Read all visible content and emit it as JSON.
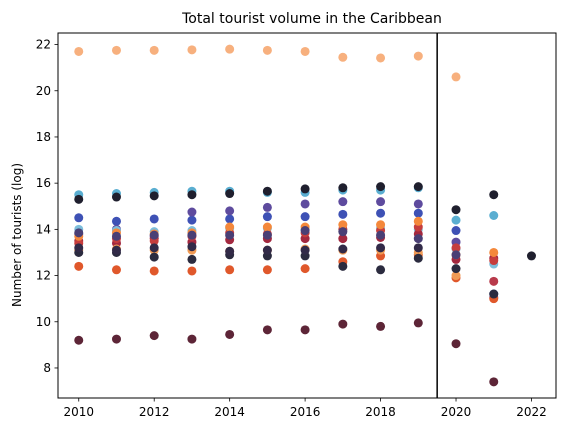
{
  "chart_data": {
    "type": "scatter",
    "title": "Total tourist volume in the Caribbean",
    "xlabel": "",
    "ylabel": "Number of tourists (log)",
    "xlim": [
      2009.45,
      2022.65
    ],
    "ylim": [
      6.7,
      22.5
    ],
    "xticks": [
      2010,
      2012,
      2014,
      2016,
      2018,
      2020,
      2022
    ],
    "yticks": [
      8,
      10,
      12,
      14,
      16,
      18,
      20,
      22
    ],
    "grid": false,
    "legend": "none",
    "vline": {
      "x": 2019.5,
      "color": "#000000"
    },
    "series": [
      {
        "color": "#f7b07e",
        "x": [
          2010,
          2011,
          2012,
          2013,
          2014,
          2015,
          2016,
          2017,
          2018,
          2019,
          2020
        ],
        "y": [
          21.7,
          21.75,
          21.75,
          21.77,
          21.8,
          21.75,
          21.7,
          21.45,
          21.42,
          21.5,
          20.6
        ]
      },
      {
        "color": "#5aaed1",
        "x": [
          2010,
          2011,
          2012,
          2013,
          2014,
          2015,
          2016,
          2017,
          2018,
          2019,
          2020,
          2021
        ],
        "y": [
          15.5,
          15.55,
          15.6,
          15.65,
          15.65,
          15.6,
          15.6,
          15.7,
          15.7,
          15.8,
          14.4,
          14.6
        ]
      },
      {
        "color": "#1f1f2e",
        "x": [
          2010,
          2011,
          2012,
          2013,
          2014,
          2015,
          2016,
          2017,
          2018,
          2019,
          2020,
          2021,
          2022
        ],
        "y": [
          15.3,
          15.4,
          15.45,
          15.5,
          15.55,
          15.65,
          15.75,
          15.8,
          15.85,
          15.85,
          14.85,
          15.5,
          12.85
        ]
      },
      {
        "color": "#3e51b5",
        "x": [
          2010,
          2011,
          2012,
          2013,
          2014,
          2015,
          2016,
          2017,
          2018,
          2019,
          2020,
          2021
        ],
        "y": [
          14.5,
          14.35,
          14.45,
          14.4,
          14.45,
          14.55,
          14.55,
          14.65,
          14.7,
          14.7,
          13.95,
          11.2
        ]
      },
      {
        "color": "#5e4b9e",
        "x": [
          2010,
          2011,
          2012,
          2013,
          2014,
          2015,
          2016,
          2017,
          2018,
          2019,
          2020,
          2021
        ],
        "y": [
          13.8,
          14.0,
          13.7,
          14.75,
          14.8,
          14.95,
          15.1,
          15.2,
          15.2,
          15.1,
          13.45,
          11.05
        ]
      },
      {
        "color": "#7dbedb",
        "x": [
          2010,
          2011,
          2012,
          2013,
          2014,
          2015,
          2016,
          2017,
          2018,
          2019,
          2020,
          2021
        ],
        "y": [
          14.0,
          13.95,
          13.9,
          13.95,
          14.05,
          14.05,
          14.0,
          14.0,
          14.05,
          14.0,
          13.15,
          12.5
        ]
      },
      {
        "color": "#a3283f",
        "x": [
          2010,
          2011,
          2012,
          2013,
          2014,
          2015,
          2016,
          2017,
          2018,
          2019,
          2020,
          2021
        ],
        "y": [
          13.5,
          13.4,
          13.6,
          13.45,
          13.55,
          13.6,
          13.6,
          13.6,
          13.65,
          13.8,
          12.7,
          12.75
        ]
      },
      {
        "color": "#c63d3d",
        "x": [
          2010,
          2011,
          2012,
          2013,
          2014,
          2015,
          2016,
          2017,
          2018,
          2019,
          2020,
          2021
        ],
        "y": [
          13.4,
          13.6,
          13.5,
          13.7,
          13.85,
          13.8,
          13.85,
          14.0,
          13.95,
          14.1,
          13.2,
          12.65
        ]
      },
      {
        "color": "#e0582b",
        "x": [
          2010,
          2011,
          2012,
          2013,
          2014,
          2015,
          2016,
          2017,
          2018,
          2019,
          2020,
          2021
        ],
        "y": [
          12.4,
          12.25,
          12.2,
          12.2,
          12.25,
          12.25,
          12.3,
          12.6,
          12.85,
          12.9,
          11.9,
          11.0
        ]
      },
      {
        "color": "#f4883b",
        "x": [
          2010,
          2011,
          2012,
          2013,
          2014,
          2015,
          2016,
          2017,
          2018,
          2019,
          2020,
          2021
        ],
        "y": [
          13.7,
          13.85,
          13.8,
          13.85,
          14.1,
          14.1,
          14.1,
          14.2,
          14.2,
          14.35,
          12.9,
          13.0
        ]
      },
      {
        "color": "#f09a54",
        "x": [
          2010,
          2011,
          2012,
          2013,
          2014,
          2015,
          2016,
          2017,
          2018,
          2019,
          2020
        ],
        "y": [
          13.1,
          13.15,
          13.1,
          13.1,
          13.05,
          13.1,
          13.15,
          13.1,
          13.1,
          13.0,
          12.0
        ]
      },
      {
        "color": "#2b2b3f",
        "x": [
          2010,
          2011,
          2012,
          2013,
          2014,
          2015,
          2016,
          2017,
          2018,
          2019,
          2020,
          2021
        ],
        "y": [
          13.0,
          13.0,
          12.8,
          12.7,
          12.9,
          12.85,
          12.85,
          12.4,
          12.25,
          12.75,
          12.3,
          11.2
        ]
      },
      {
        "color": "#322a48",
        "x": [
          2010,
          2011,
          2012,
          2013,
          2014,
          2015,
          2016,
          2017,
          2018,
          2019
        ],
        "y": [
          13.2,
          13.1,
          13.2,
          13.25,
          13.05,
          13.1,
          13.1,
          13.15,
          13.2,
          13.2
        ]
      },
      {
        "color": "#4a3f75",
        "x": [
          2010,
          2011,
          2012,
          2013,
          2014,
          2015,
          2016,
          2017,
          2018,
          2019,
          2020
        ],
        "y": [
          13.85,
          13.7,
          13.75,
          13.75,
          13.75,
          13.75,
          13.95,
          13.9,
          13.75,
          13.6,
          12.9
        ]
      },
      {
        "color": "#5d2537",
        "x": [
          2010,
          2011,
          2012,
          2013,
          2014,
          2015,
          2016,
          2017,
          2018,
          2019,
          2020,
          2021
        ],
        "y": [
          9.2,
          9.25,
          9.4,
          9.25,
          9.45,
          9.65,
          9.65,
          9.9,
          9.8,
          9.95,
          9.05,
          7.4
        ]
      },
      {
        "color": "#b83a4b",
        "x": [
          2021
        ],
        "y": [
          11.75
        ]
      }
    ]
  }
}
